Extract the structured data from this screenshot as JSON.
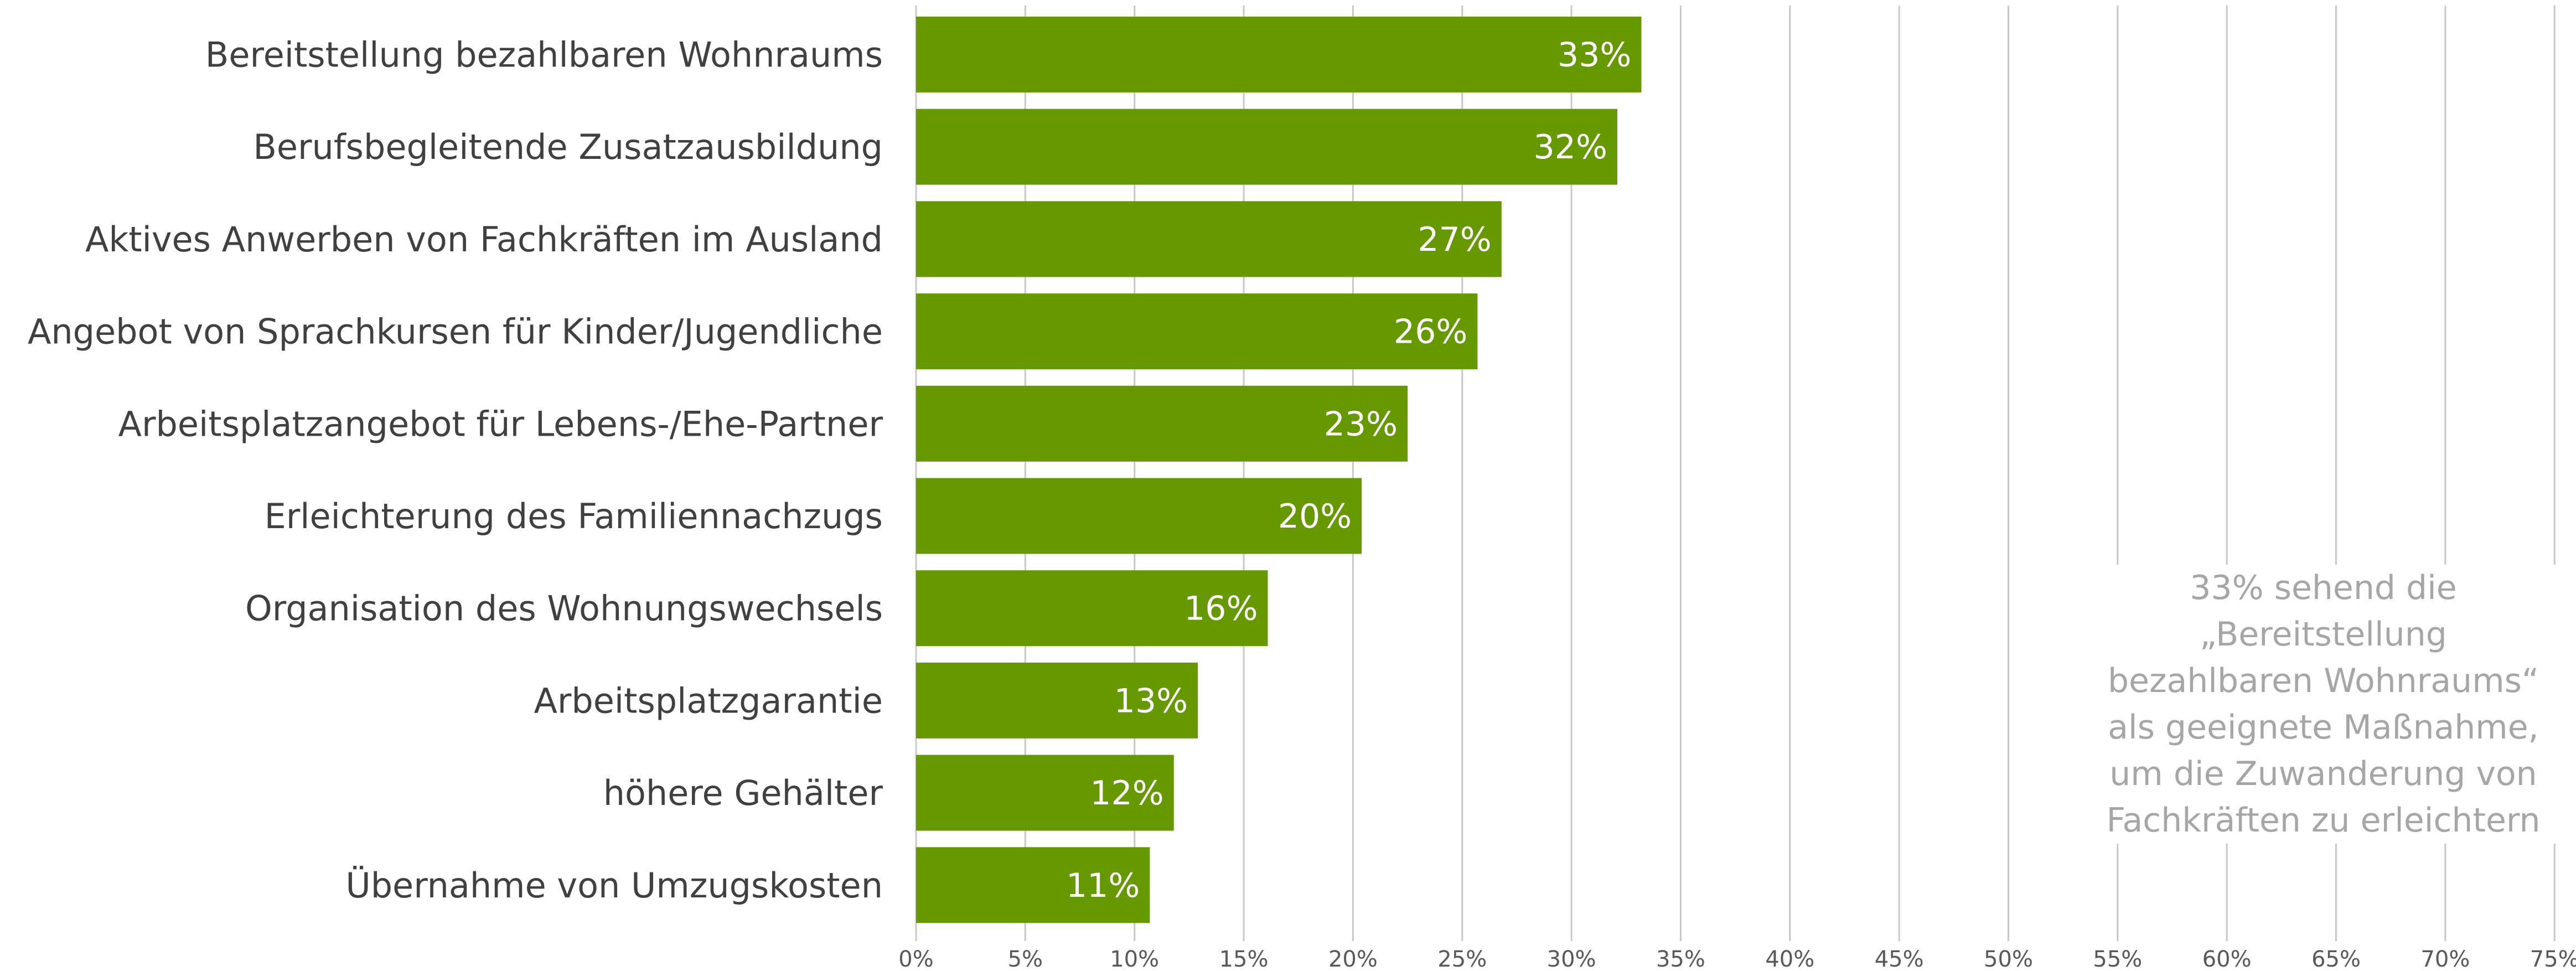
{
  "chart_data": {
    "type": "bar",
    "orientation": "horizontal",
    "categories": [
      "Bereitstellung bezahlbaren Wohnraums",
      "Berufsbegleitende Zusatzausbildung",
      "Aktives Anwerben von Fachkräften im Ausland",
      "Angebot von Sprachkursen für Kinder/Jugendliche",
      "Arbeitsplatzangebot für Lebens-/Ehe-Partner",
      "Erleichterung des Familiennachzugs",
      "Organisation des Wohnungswechsels",
      "Arbeitsplatzgarantie",
      "höhere Gehälter",
      "Übernahme von Umzugskosten"
    ],
    "values": [
      33.2,
      32.1,
      26.8,
      25.7,
      22.5,
      20.4,
      16.1,
      12.9,
      11.8,
      10.7
    ],
    "value_labels": [
      "33%",
      "32%",
      "27%",
      "26%",
      "23%",
      "20%",
      "16%",
      "13%",
      "12%",
      "11%"
    ],
    "x_ticks": [
      "0%",
      "5%",
      "10%",
      "15%",
      "20%",
      "25%",
      "30%",
      "35%",
      "40%",
      "45%",
      "50%",
      "55%",
      "60%",
      "65%",
      "70%",
      "75%"
    ],
    "xlim": [
      0,
      75
    ],
    "grid": true,
    "annotation": "33% sehend die\n„Bereitstellung\nbezahlbaren Wohnraums“\nals geeignete Maßnahme,\num die Zuwanderung von\nFachkräften zu erleichtern",
    "colors": {
      "bar": "#669900",
      "grid": "#c8c8c8",
      "category_text": "#404040",
      "value_text": "#ffffff",
      "annotation_text": "#a6a6a6"
    }
  }
}
